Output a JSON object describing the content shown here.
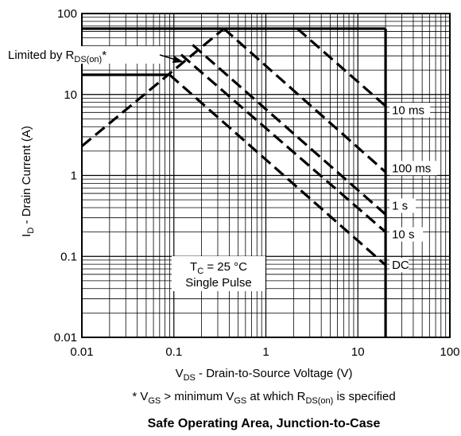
{
  "chart_data": {
    "type": "line",
    "title": "Safe Operating Area, Junction-to-Case",
    "x_scale": "log",
    "y_scale": "log",
    "xlim": [
      0.01,
      100
    ],
    "ylim": [
      0.01,
      100
    ],
    "grid": true,
    "x_ticks": [
      "0.01",
      "0.1",
      "1",
      "10",
      "100"
    ],
    "y_ticks": [
      "0.01",
      "0.1",
      "1",
      "10",
      "100"
    ],
    "xlabel": {
      "main": "V",
      "sub": "DS",
      "rest": " - Drain-to-Source Voltage (V)"
    },
    "ylabel": {
      "main": "I",
      "sub": "D",
      "rest": " - Drain Current (A)"
    },
    "footnote": {
      "p1": "* V",
      "s1": "GS",
      "p2": " > minimum V",
      "s2": "GS",
      "p3": " at which R",
      "s3": "DS(on)",
      "p4": " is specified"
    },
    "limit_label": {
      "main": "Limited by R",
      "sub": "DS(on)",
      "rest": "*"
    },
    "conditions": {
      "line1_main": "T",
      "line1_sub": "C",
      "line1_rest": " = 25 °C",
      "line2": "Single Pulse"
    },
    "series": [
      {
        "name": "10 ms",
        "style": "dashed",
        "x": [
          2.2,
          20
        ],
        "y": [
          65,
          7.2
        ]
      },
      {
        "name": "100 ms",
        "style": "dashed",
        "x": [
          0.35,
          20
        ],
        "y": [
          65,
          1.1
        ]
      },
      {
        "name": "1 s",
        "style": "dashed",
        "x": [
          0.16,
          20
        ],
        "y": [
          41,
          0.33
        ]
      },
      {
        "name": "10 s",
        "style": "dashed",
        "x": [
          0.12,
          20
        ],
        "y": [
          31,
          0.2
        ]
      },
      {
        "name": "DC",
        "style": "dashed",
        "x": [
          0.09,
          20
        ],
        "y": [
          17.5,
          0.078
        ]
      }
    ],
    "rds_on_limit": {
      "style": "dashed",
      "x": [
        0.01,
        0.35
      ],
      "y": [
        2.3,
        65
      ]
    },
    "current_limits": [
      {
        "style": "solid",
        "x": [
          0.01,
          20
        ],
        "y": [
          65,
          65
        ]
      },
      {
        "style": "solid",
        "x": [
          0.01,
          0.09
        ],
        "y": [
          17.5,
          17.5
        ]
      }
    ],
    "voltage_limit": {
      "style": "solid",
      "x": [
        20,
        20
      ],
      "y": [
        0.01,
        65
      ]
    }
  }
}
